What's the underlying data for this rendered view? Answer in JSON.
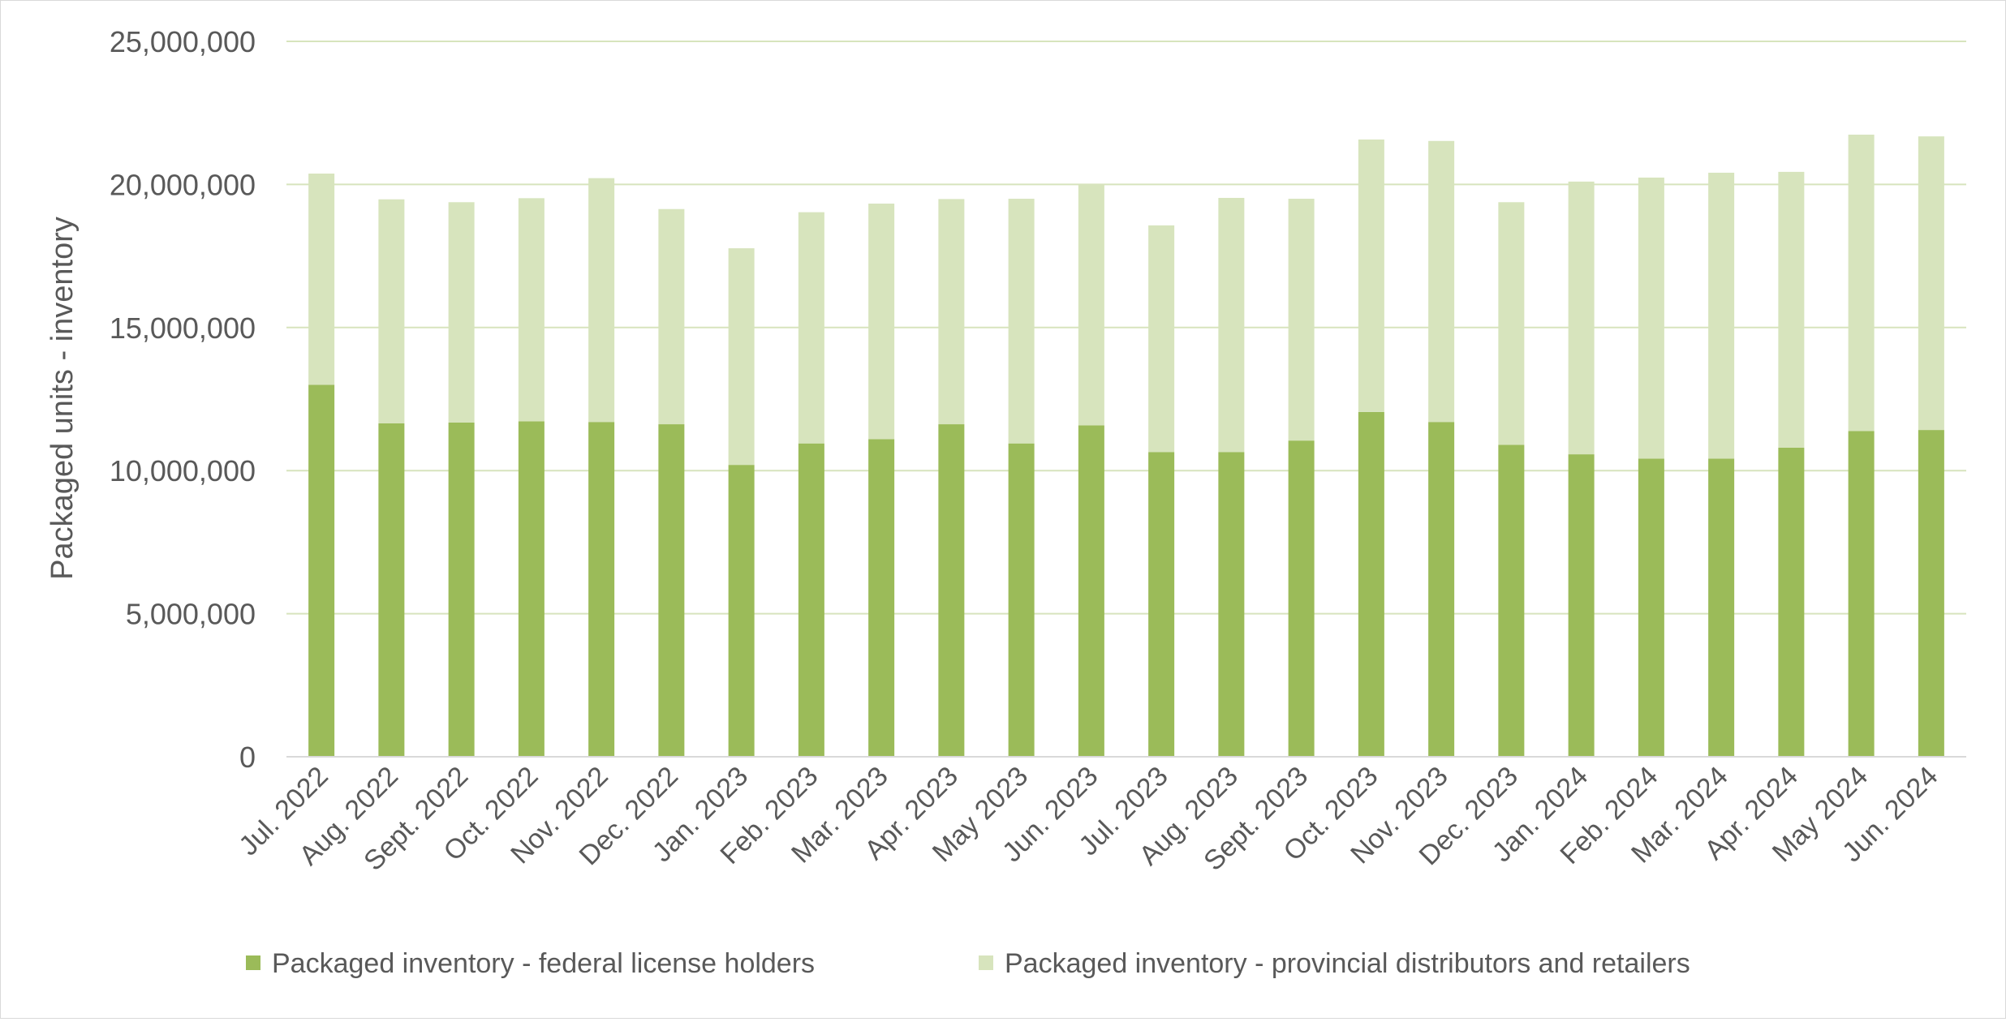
{
  "chart_data": {
    "type": "bar",
    "stacked": true,
    "title": "",
    "xlabel": "",
    "ylabel": "Packaged units - inventory",
    "ylim": [
      0,
      25000000
    ],
    "yticks": [
      0,
      5000000,
      10000000,
      15000000,
      20000000,
      25000000
    ],
    "ytick_labels": [
      "0",
      "5,000,000",
      "10,000,000",
      "15,000,000",
      "20,000,000",
      "25,000,000"
    ],
    "grid": true,
    "legend_position": "bottom",
    "categories": [
      "Jul. 2022",
      "Aug. 2022",
      "Sept. 2022",
      "Oct. 2022",
      "Nov. 2022",
      "Dec. 2022",
      "Jan. 2023",
      "Feb. 2023",
      "Mar. 2023",
      "Apr. 2023",
      "May 2023",
      "Jun. 2023",
      "Jul. 2023",
      "Aug. 2023",
      "Sept. 2023",
      "Oct. 2023",
      "Nov. 2023",
      "Dec. 2023",
      "Jan. 2024",
      "Feb. 2024",
      "Mar. 2024",
      "Apr. 2024",
      "May 2024",
      "Jun. 2024"
    ],
    "series": [
      {
        "name": "Packaged inventory - federal license holders",
        "color": "#9bbb59",
        "values": [
          13000000,
          11650000,
          11680000,
          11720000,
          11700000,
          11620000,
          10200000,
          10950000,
          11100000,
          11620000,
          10950000,
          11580000,
          10650000,
          10650000,
          11050000,
          12050000,
          11700000,
          10900000,
          10570000,
          10420000,
          10420000,
          10800000,
          11380000,
          11420000
        ]
      },
      {
        "name": "Packaged inventory - provincial distributors and retailers",
        "color": "#d7e4bd",
        "values": [
          7380000,
          7830000,
          7700000,
          7800000,
          8520000,
          7520000,
          7570000,
          8080000,
          8230000,
          7870000,
          8550000,
          8420000,
          7920000,
          8880000,
          8450000,
          9520000,
          9820000,
          8480000,
          9530000,
          9820000,
          9990000,
          9640000,
          10360000,
          10260000
        ]
      }
    ]
  }
}
